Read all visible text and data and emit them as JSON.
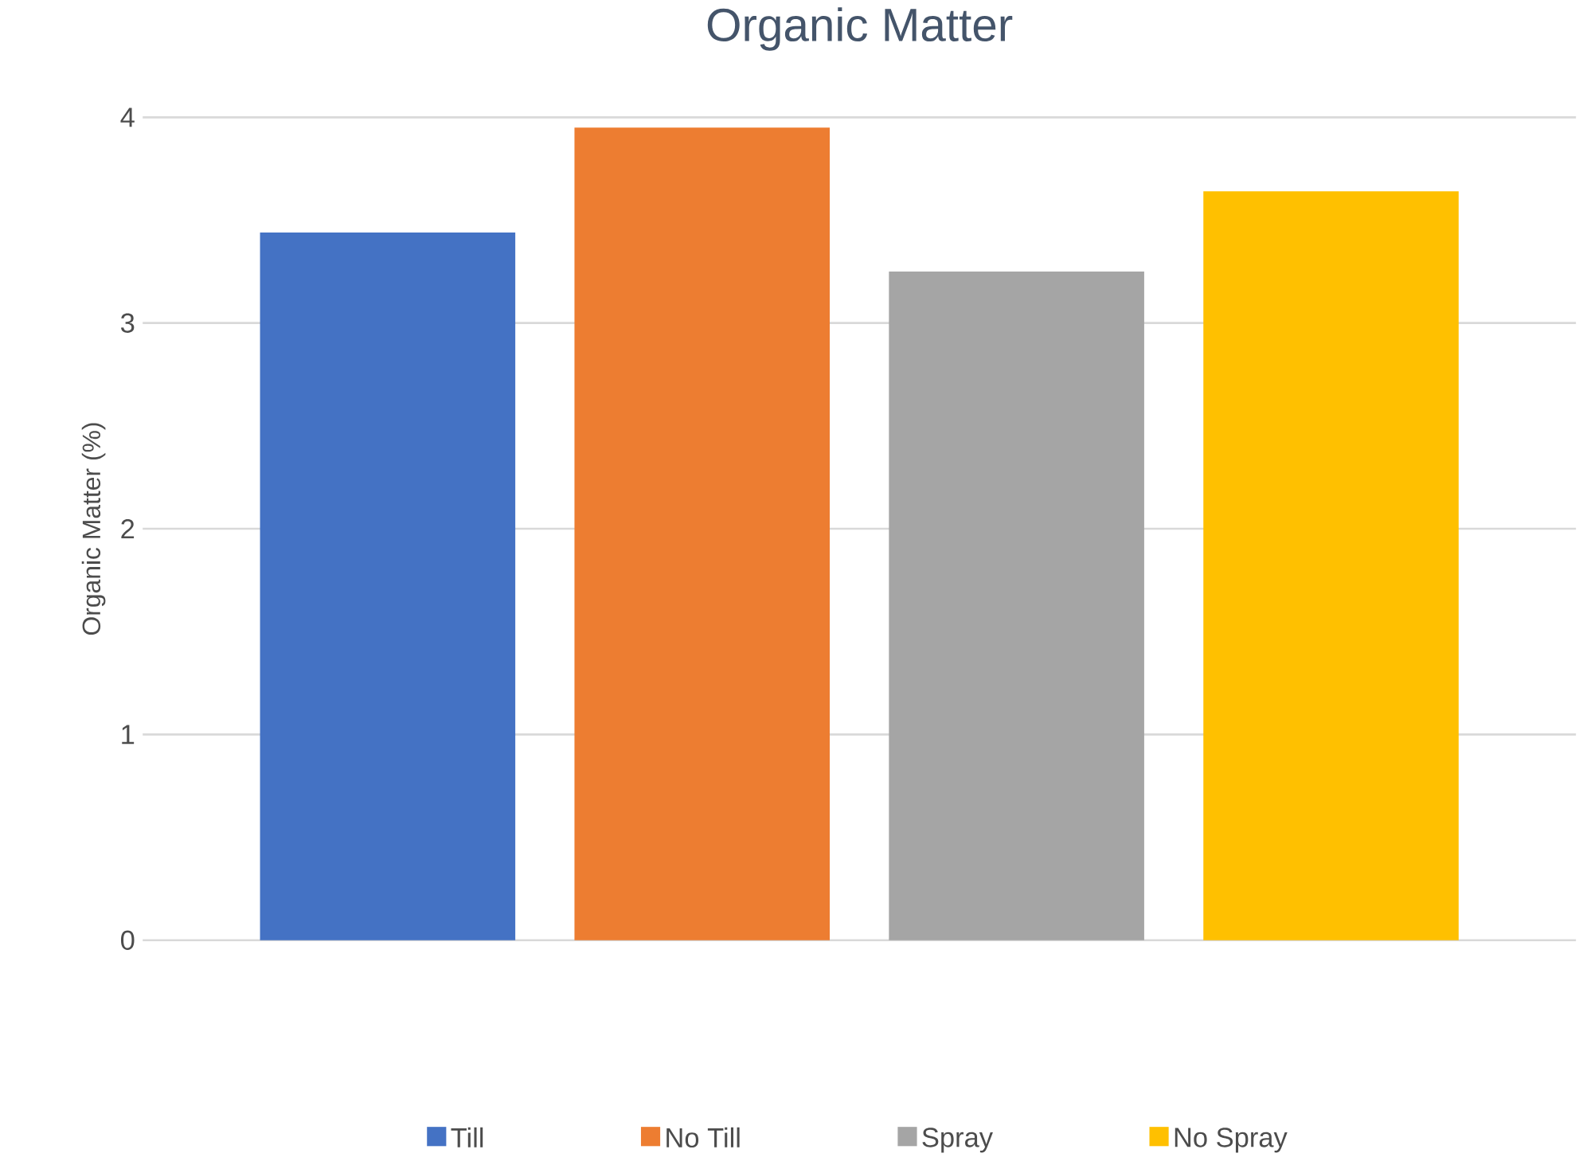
{
  "chart_data": {
    "type": "bar",
    "title": "Organic Matter",
    "ylabel": "Organic Matter (%)",
    "categories": [
      null
    ],
    "series": [
      {
        "name": "Till",
        "color": "#4472c4",
        "values": [
          3.44
        ]
      },
      {
        "name": "No Till",
        "color": "#ed7d31",
        "values": [
          3.95
        ]
      },
      {
        "name": "Spray",
        "color": "#a5a5a5",
        "values": [
          3.25
        ]
      },
      {
        "name": "No Spray",
        "color": "#ffc000",
        "values": [
          3.64
        ]
      }
    ],
    "ylim": [
      0,
      4
    ],
    "yticks": [
      0,
      1,
      2,
      3,
      4
    ],
    "grid": "y",
    "legend": "bottom"
  }
}
